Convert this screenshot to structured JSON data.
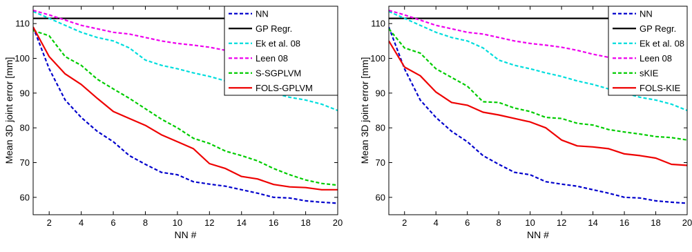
{
  "chart_data": [
    {
      "type": "line",
      "xlabel": "NN #",
      "ylabel": "Mean 3D joint error [mm]",
      "xlim": [
        1,
        20
      ],
      "ylim": [
        55,
        115
      ],
      "xticks": [
        2,
        4,
        6,
        8,
        10,
        12,
        14,
        16,
        18,
        20
      ],
      "yticks": [
        60,
        70,
        80,
        90,
        100,
        110
      ],
      "grid": false,
      "legend_position": "top-right",
      "x": [
        1,
        2,
        3,
        4,
        5,
        6,
        7,
        8,
        9,
        10,
        11,
        12,
        13,
        14,
        15,
        16,
        17,
        18,
        19,
        20
      ],
      "series": [
        {
          "name": "NN",
          "color": "#0000cc",
          "style": "dashed",
          "values": [
            109,
            97,
            88,
            83,
            79,
            76,
            72,
            69.5,
            67.2,
            66.5,
            64.5,
            63.8,
            63.2,
            62.2,
            61.2,
            60,
            59.8,
            59,
            58.6,
            58.3
          ]
        },
        {
          "name": "GP Regr.",
          "color": "#000000",
          "style": "solid",
          "values": [
            111.5,
            111.5,
            111.5,
            111.5,
            111.5,
            111.5,
            111.5,
            111.5,
            111.5,
            111.5,
            111.5,
            111.5,
            111.5,
            111.5,
            111.5,
            111.5,
            111.5,
            111.5,
            111.5,
            111.5
          ]
        },
        {
          "name": "Ek et al. 08",
          "color": "#00dddd",
          "style": "dashed",
          "values": [
            113.5,
            111.5,
            109.5,
            107.5,
            106,
            105,
            103,
            99.5,
            98,
            97,
            95.8,
            94.8,
            93.5,
            92.5,
            91.2,
            90,
            88.8,
            88,
            86.8,
            85
          ]
        },
        {
          "name": "Leen 08",
          "color": "#ee00ee",
          "style": "dashed",
          "values": [
            113.8,
            112.5,
            111,
            109.5,
            108.5,
            107.5,
            107,
            106,
            105,
            104.3,
            103.8,
            103.2,
            102.3,
            101.2,
            100.3,
            99.5,
            98.8,
            98,
            97.5,
            97.3
          ]
        },
        {
          "name": "S-SGPLVM",
          "color": "#00cc00",
          "style": "dashed",
          "values": [
            108,
            106.5,
            100.5,
            98,
            94,
            91.2,
            88.5,
            85.5,
            82.5,
            80,
            77,
            75.5,
            73.3,
            72,
            70.5,
            68.3,
            66.5,
            65,
            64,
            63.5
          ]
        },
        {
          "name": "FOLS-GPLVM",
          "color": "#ee0000",
          "style": "solid",
          "values": [
            109,
            100.5,
            95.5,
            92.5,
            88.5,
            84.7,
            82.7,
            80.7,
            78,
            76,
            74,
            69.7,
            68.3,
            66,
            65.3,
            63.7,
            63,
            62.8,
            62.2,
            62.2
          ]
        }
      ]
    },
    {
      "type": "line",
      "xlabel": "NN #",
      "ylabel": "Mean 3D joint error [mm]",
      "xlim": [
        1,
        20
      ],
      "ylim": [
        55,
        115
      ],
      "xticks": [
        2,
        4,
        6,
        8,
        10,
        12,
        14,
        16,
        18,
        20
      ],
      "yticks": [
        60,
        70,
        80,
        90,
        100,
        110
      ],
      "grid": false,
      "legend_position": "top-right",
      "x": [
        1,
        2,
        3,
        4,
        5,
        6,
        7,
        8,
        9,
        10,
        11,
        12,
        13,
        14,
        15,
        16,
        17,
        18,
        19,
        20
      ],
      "series": [
        {
          "name": "NN",
          "color": "#0000cc",
          "style": "dashed",
          "values": [
            109,
            97,
            88,
            83,
            79,
            76,
            72,
            69.5,
            67.2,
            66.5,
            64.5,
            63.8,
            63.2,
            62.2,
            61.2,
            60,
            59.8,
            59,
            58.6,
            58.3
          ]
        },
        {
          "name": "GP Regr.",
          "color": "#000000",
          "style": "solid",
          "values": [
            111.5,
            111.5,
            111.5,
            111.5,
            111.5,
            111.5,
            111.5,
            111.5,
            111.5,
            111.5,
            111.5,
            111.5,
            111.5,
            111.5,
            111.5,
            111.5,
            111.5,
            111.5,
            111.5,
            111.5
          ]
        },
        {
          "name": "Ek et al. 08",
          "color": "#00dddd",
          "style": "dashed",
          "values": [
            113.5,
            111.5,
            109.5,
            107.5,
            106,
            105,
            103,
            99.5,
            98,
            97,
            95.8,
            94.8,
            93.5,
            92.5,
            91.2,
            90,
            88.8,
            88,
            86.8,
            85
          ]
        },
        {
          "name": "Leen 08",
          "color": "#ee00ee",
          "style": "dashed",
          "values": [
            113.8,
            112.5,
            111,
            109.5,
            108.5,
            107.5,
            107,
            106,
            105,
            104.3,
            103.8,
            103.2,
            102.3,
            101.2,
            100.3,
            99.5,
            98.8,
            98,
            97.5,
            97.3
          ]
        },
        {
          "name": "sKIE",
          "color": "#00cc00",
          "style": "dashed",
          "values": [
            108.5,
            103,
            101.5,
            97,
            94.5,
            92,
            87.5,
            87.3,
            85.7,
            84.7,
            83,
            82.7,
            81.3,
            80.8,
            79.5,
            78.8,
            78.2,
            77.5,
            77.2,
            76.5
          ]
        },
        {
          "name": "FOLS-KIE",
          "color": "#ee0000",
          "style": "solid",
          "values": [
            105,
            97.5,
            95,
            90.3,
            87.3,
            86.5,
            84.5,
            83.7,
            82.7,
            81.7,
            80,
            76.5,
            74.8,
            74.5,
            74,
            72.5,
            72,
            71.3,
            69.5,
            69.2
          ]
        }
      ]
    }
  ]
}
